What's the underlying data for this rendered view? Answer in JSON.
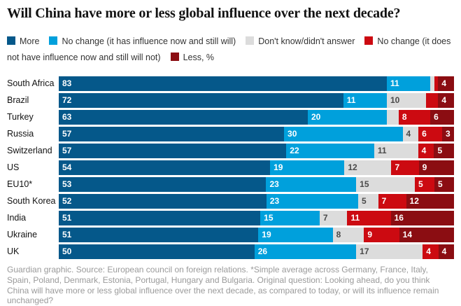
{
  "title": "Will China have more or less global influence over the next decade?",
  "footer": "Guardian graphic. Source: European council on foreign relations. *Simple average across Germany, France, Italy, Spain, Poland, Denmark, Estonia, Portugal, Hungary and Bulgaria. Original question: Looking ahead, do you think China will have more or less global influence over the next decade, as compared to today, or will its influence remain unchanged?",
  "legend": [
    {
      "label": "More",
      "color": "#05588a"
    },
    {
      "label": "No change (it has influence now and still will)",
      "color": "#00a0dc"
    },
    {
      "label": "Don't know/didn't answer",
      "color": "#dcdcdc"
    },
    {
      "label": "No change (it does not have influence now and still will not)",
      "color": "#cc0a11"
    },
    {
      "label": "Less, %",
      "color": "#8b0d12"
    }
  ],
  "chart_data": {
    "type": "bar",
    "orientation": "horizontal-stacked",
    "unit": "%",
    "xlim": [
      0,
      100
    ],
    "grid": false,
    "legend_position": "top",
    "title": "Will China have more or less global influence over the next decade?",
    "series_names": [
      "More",
      "No change (it has influence now and still will)",
      "Don't know/didn't answer",
      "No change (it does not have influence now and still will not)",
      "Less"
    ],
    "series_colors": [
      "#05588a",
      "#00a0dc",
      "#dcdcdc",
      "#cc0a11",
      "#8b0d12"
    ],
    "gray_segment_index": 2,
    "categories": [
      "South Africa",
      "Brazil",
      "Turkey",
      "Russia",
      "Switzerland",
      "US",
      "EU10*",
      "South Korea",
      "India",
      "Ukraine",
      "UK"
    ],
    "rows": [
      {
        "country": "South Africa",
        "values": [
          83,
          11,
          1,
          1,
          4
        ],
        "labels": [
          "83",
          "11",
          "",
          "",
          "4"
        ]
      },
      {
        "country": "Brazil",
        "values": [
          72,
          11,
          10,
          3,
          4
        ],
        "labels": [
          "72",
          "11",
          "10",
          "",
          "4"
        ]
      },
      {
        "country": "Turkey",
        "values": [
          63,
          20,
          3,
          8,
          6
        ],
        "labels": [
          "63",
          "20",
          "",
          "8",
          "6"
        ]
      },
      {
        "country": "Russia",
        "values": [
          57,
          30,
          4,
          6,
          3
        ],
        "labels": [
          "57",
          "30",
          "4",
          "6",
          "3"
        ]
      },
      {
        "country": "Switzerland",
        "values": [
          57,
          22,
          11,
          4,
          5
        ],
        "labels": [
          "57",
          "22",
          "11",
          "4",
          "5"
        ]
      },
      {
        "country": "US",
        "values": [
          54,
          19,
          12,
          7,
          9
        ],
        "labels": [
          "54",
          "19",
          "12",
          "7",
          "9"
        ]
      },
      {
        "country": "EU10*",
        "values": [
          53,
          23,
          15,
          5,
          5
        ],
        "labels": [
          "53",
          "23",
          "15",
          "5",
          "5"
        ]
      },
      {
        "country": "South Korea",
        "values": [
          52,
          23,
          5,
          7,
          12
        ],
        "labels": [
          "52",
          "23",
          "5",
          "7",
          "12"
        ]
      },
      {
        "country": "India",
        "values": [
          51,
          15,
          7,
          11,
          16
        ],
        "labels": [
          "51",
          "15",
          "7",
          "11",
          "16"
        ]
      },
      {
        "country": "Ukraine",
        "values": [
          51,
          19,
          8,
          9,
          14
        ],
        "labels": [
          "51",
          "19",
          "8",
          "9",
          "14"
        ]
      },
      {
        "country": "UK",
        "values": [
          50,
          26,
          17,
          4,
          4
        ],
        "labels": [
          "50",
          "26",
          "17",
          "4",
          "4"
        ]
      }
    ]
  }
}
